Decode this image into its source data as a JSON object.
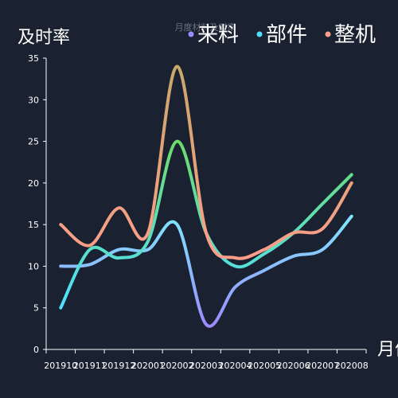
{
  "chart_data": {
    "type": "line",
    "title": "月度材料及时率",
    "ylabel": "及时率",
    "xlabel": "月份",
    "categories": [
      "201910",
      "201911",
      "201912",
      "202001",
      "202002",
      "202003",
      "202004",
      "202005",
      "202006",
      "202007",
      "202008"
    ],
    "ylim": [
      0,
      35
    ],
    "yticks": [
      0,
      5,
      10,
      15,
      20,
      25,
      30,
      35
    ],
    "grid": false,
    "legend": "top-right",
    "series": [
      {
        "name": "来料",
        "color": "#9b8cff",
        "gradient_to": "#7fe6ff",
        "values": [
          10,
          10.2,
          12,
          12,
          15,
          3,
          7.5,
          9.5,
          11.2,
          12,
          16
        ],
        "x": [
          0.5,
          1.5,
          2.5,
          3.5,
          4.5,
          5.5,
          6.5,
          7.5,
          8.5,
          9.5,
          10.5
        ]
      },
      {
        "name": "部件",
        "color": "#4fe0ff",
        "gradient_to": "#6ddc6a",
        "values": [
          5,
          12,
          11,
          13,
          25,
          14,
          10,
          11.5,
          14,
          17.5,
          21
        ],
        "x": [
          0.5,
          1.5,
          2.5,
          3.5,
          4.5,
          5.5,
          6.5,
          7.5,
          8.5,
          9.5,
          10.5
        ]
      },
      {
        "name": "整机",
        "color": "#ff9e8a",
        "gradient_to": "#c9a86a",
        "values": [
          15,
          12.5,
          17,
          14,
          34,
          14,
          11,
          12,
          14,
          14.5,
          20
        ],
        "x": [
          0.5,
          1.5,
          2.5,
          3.5,
          4.5,
          5.5,
          6.5,
          7.5,
          8.5,
          9.5,
          10.5
        ]
      }
    ]
  }
}
